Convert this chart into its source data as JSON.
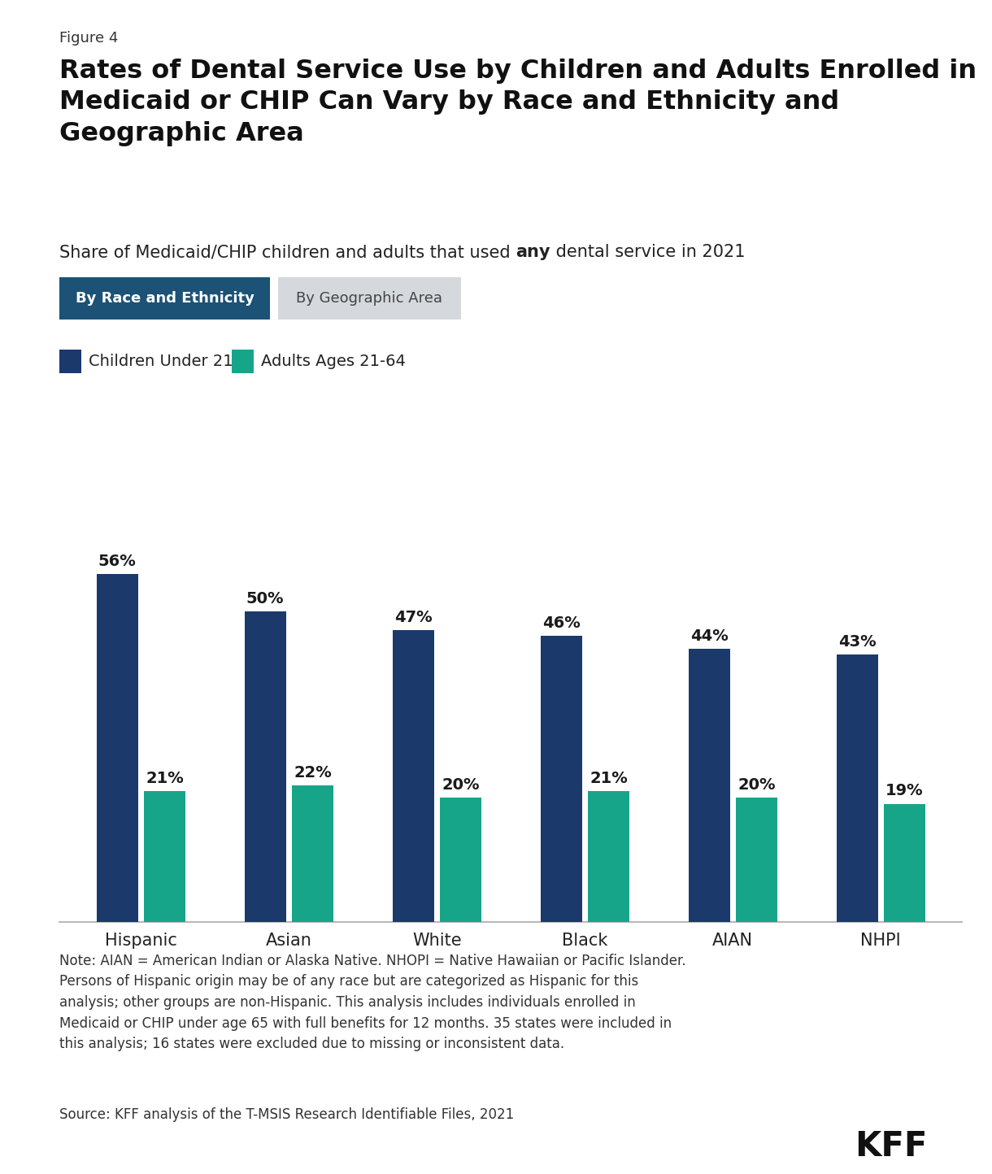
{
  "figure_label": "Figure 4",
  "title_line1": "Rates of Dental Service Use by Children and Adults Enrolled in",
  "title_line2": "Medicaid or CHIP Can Vary by Race and Ethnicity and",
  "title_line3": "Geographic Area",
  "subtitle_plain1": "Share of Medicaid/CHIP children and adults that used ",
  "subtitle_bold": "any",
  "subtitle_plain2": " dental service in 2021",
  "tab1_label": "By Race and Ethnicity",
  "tab2_label": "By Geographic Area",
  "tab1_bg": "#1b5276",
  "tab1_fg": "#ffffff",
  "tab2_bg": "#d5d8dc",
  "tab2_fg": "#444444",
  "legend_children_label": "Children Under 21",
  "legend_adults_label": "Adults Ages 21-64",
  "children_color": "#1b3a6b",
  "adults_color": "#17a589",
  "categories": [
    "Hispanic",
    "Asian",
    "White",
    "Black",
    "AIAN",
    "NHPI"
  ],
  "children_values": [
    56,
    50,
    47,
    46,
    44,
    43
  ],
  "adults_values": [
    21,
    22,
    20,
    21,
    20,
    19
  ],
  "note_text": "Note: AIAN = American Indian or Alaska Native. NHOPI = Native Hawaiian or Pacific Islander.\nPersons of Hispanic origin may be of any race but are categorized as Hispanic for this\nanalysis; other groups are non-Hispanic. This analysis includes individuals enrolled in\nMedicaid or CHIP under age 65 with full benefits for 12 months. 35 states were included in\nthis analysis; 16 states were excluded due to missing or inconsistent data.",
  "source_text": "Source: KFF analysis of the T-MSIS Research Identifiable Files, 2021",
  "kff_text": "KFF",
  "bg_color": "#ffffff",
  "bar_width": 0.28,
  "ylim": [
    0,
    70
  ],
  "title_fontsize": 23,
  "subtitle_fontsize": 15,
  "figure_label_fontsize": 13,
  "tab_fontsize": 13,
  "legend_fontsize": 14,
  "bar_label_fontsize": 14,
  "xticklabel_fontsize": 15,
  "note_fontsize": 12,
  "source_fontsize": 12,
  "kff_fontsize": 30
}
